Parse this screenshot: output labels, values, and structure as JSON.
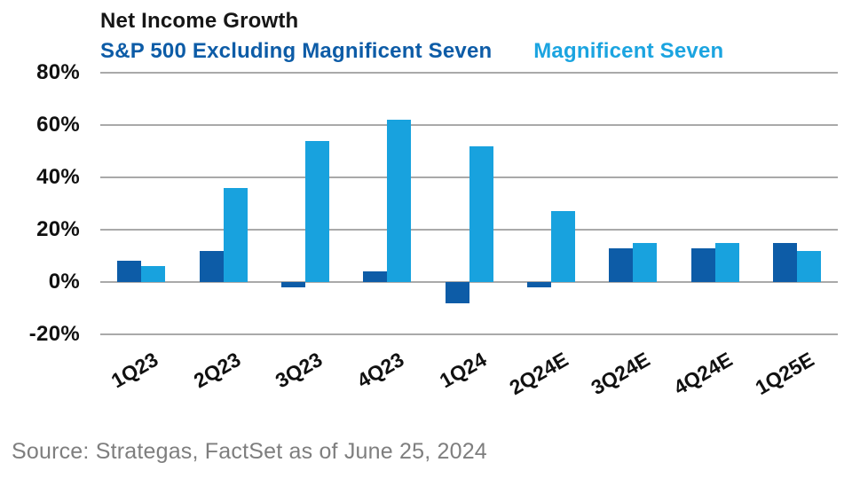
{
  "title": "Net Income Growth",
  "legend": [
    {
      "label": "S&P 500 Excluding Magnificent Seven",
      "color": "#0d5ca7"
    },
    {
      "label": "Magnificent Seven",
      "color": "#1ba4e0"
    }
  ],
  "source": "Source: Strategas, FactSet as of June 25, 2024",
  "colors": {
    "excluding_mag7_bar": "#0d5ca7",
    "mag7_bar": "#18a2de",
    "gridline": "#a9a9a9",
    "axis_text": "#111111",
    "source_text": "#7e7e7e"
  },
  "chart_data": {
    "type": "bar",
    "title": "Net Income Growth",
    "xlabel": "",
    "ylabel": "",
    "categories": [
      "1Q23",
      "2Q23",
      "3Q23",
      "4Q23",
      "1Q24",
      "2Q24E",
      "3Q24E",
      "4Q24E",
      "1Q25E"
    ],
    "series": [
      {
        "name": "S&P 500 Excluding Magnificent Seven",
        "color": "#0d5ca7",
        "values": [
          8,
          12,
          -2,
          4,
          -8,
          -2,
          13,
          13,
          15
        ]
      },
      {
        "name": "Magnificent Seven",
        "color": "#18a2de",
        "values": [
          6,
          36,
          54,
          62,
          52,
          27,
          15,
          15,
          12
        ]
      }
    ],
    "ylim": [
      -20,
      80
    ],
    "ytick_values": [
      80,
      60,
      40,
      20,
      0,
      -20
    ],
    "ytick_labels": [
      "80%",
      "60%",
      "40%",
      "20%",
      "0%",
      "-20%"
    ],
    "grid": true,
    "legend_position": "top"
  }
}
